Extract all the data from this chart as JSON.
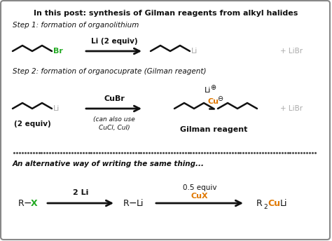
{
  "title": "In this post: synthesis of Gilman reagents from alkyl halides",
  "bg_color": "#ffffff",
  "border_color": "#888888",
  "step1_label": "Step 1: formation of organolithium",
  "step2_label": "Step 2: formation of organocuprate (Gilman reagent)",
  "alt_label": "An alternative way of writing the same thing...",
  "arrow_color": "#111111",
  "green_color": "#22aa22",
  "orange_color": "#e07800",
  "gray_color": "#aaaaaa",
  "black_color": "#111111",
  "dotted_color": "#555555"
}
